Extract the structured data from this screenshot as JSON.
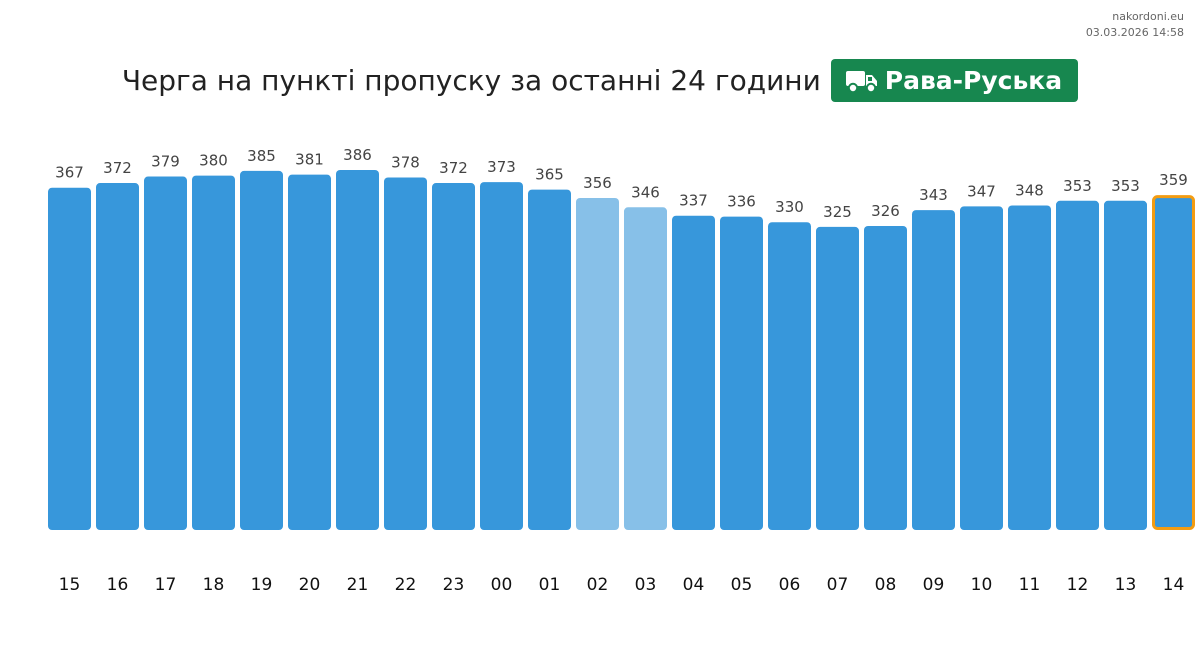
{
  "source": {
    "site": "nakordoni.eu",
    "timestamp": "03.03.2026 14:58"
  },
  "header": {
    "title": "Черга на пункті пропуску за останні 24 години",
    "badge_label": "Рава-Руська",
    "badge_icon": "truck-icon",
    "badge_color": "#17874f"
  },
  "colors": {
    "bar": "#3797db",
    "bar_light": "#87c0e8",
    "highlight_border": "#f39c12"
  },
  "chart_data": {
    "type": "bar",
    "categories": [
      "15",
      "16",
      "17",
      "18",
      "19",
      "20",
      "21",
      "22",
      "23",
      "00",
      "01",
      "02",
      "03",
      "04",
      "05",
      "06",
      "07",
      "08",
      "09",
      "10",
      "11",
      "12",
      "13",
      "14"
    ],
    "values": [
      367,
      372,
      379,
      380,
      385,
      381,
      386,
      378,
      372,
      373,
      365,
      356,
      346,
      337,
      336,
      330,
      325,
      326,
      343,
      347,
      348,
      353,
      353,
      359
    ],
    "light_categories": [
      "02",
      "03"
    ],
    "highlight_category": "14",
    "title": "Черга на пункті пропуску за останні 24 години",
    "xlabel": "",
    "ylabel": "",
    "ylim": [
      0,
      386
    ],
    "grid": false,
    "legend": "none"
  }
}
